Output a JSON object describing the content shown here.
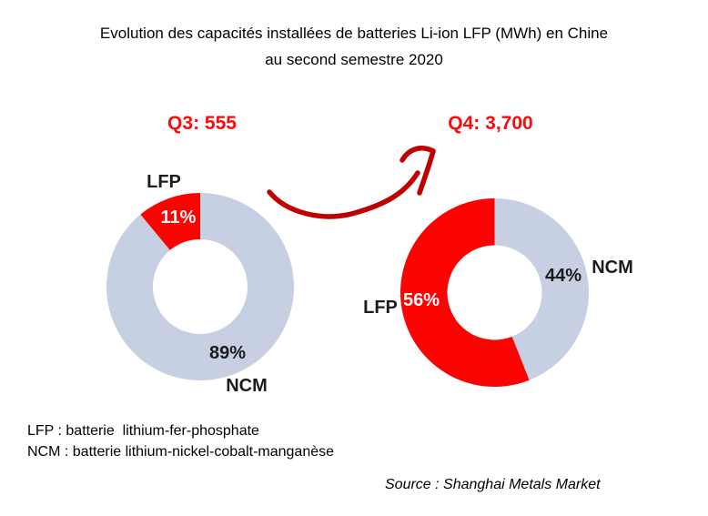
{
  "title": {
    "line1": "Evolution des capacités installées de batteries Li-ion LFP (MWh) en Chine",
    "line2": "au second semestre 2020"
  },
  "colors": {
    "lfp_red": "#fb0300",
    "ncm_blue_gray": "#c6d0e2",
    "totals_text_red": "#fb0a0a",
    "arrow_dark_red": "#c00000"
  },
  "chart_data": [
    {
      "type": "pie",
      "subtype": "donut",
      "period": "Q3",
      "title": "Q3: 555",
      "total_mwh": 555,
      "unit": "MWh",
      "legend_position": "around-slices",
      "slices": [
        {
          "label": "NCM",
          "value_pct": 89,
          "pct_label": "89%",
          "color": "#c6d0e2"
        },
        {
          "label": "LFP",
          "value_pct": 11,
          "pct_label": "11%",
          "color": "#fb0300"
        }
      ]
    },
    {
      "type": "pie",
      "subtype": "donut",
      "period": "Q4",
      "title": "Q4: 3,700",
      "total_mwh": 3700,
      "unit": "MWh",
      "legend_position": "around-slices",
      "slices": [
        {
          "label": "NCM",
          "value_pct": 44,
          "pct_label": "44%",
          "color": "#c6d0e2"
        },
        {
          "label": "LFP",
          "value_pct": 56,
          "pct_label": "56%",
          "color": "#fb0300"
        }
      ]
    }
  ],
  "notes": {
    "line1": "LFP : batterie  lithium-fer-phosphate",
    "line2": "NCM : batterie lithium-nickel-cobalt-manganèse"
  },
  "source": {
    "text": "Source : Shanghai Metals Market"
  }
}
